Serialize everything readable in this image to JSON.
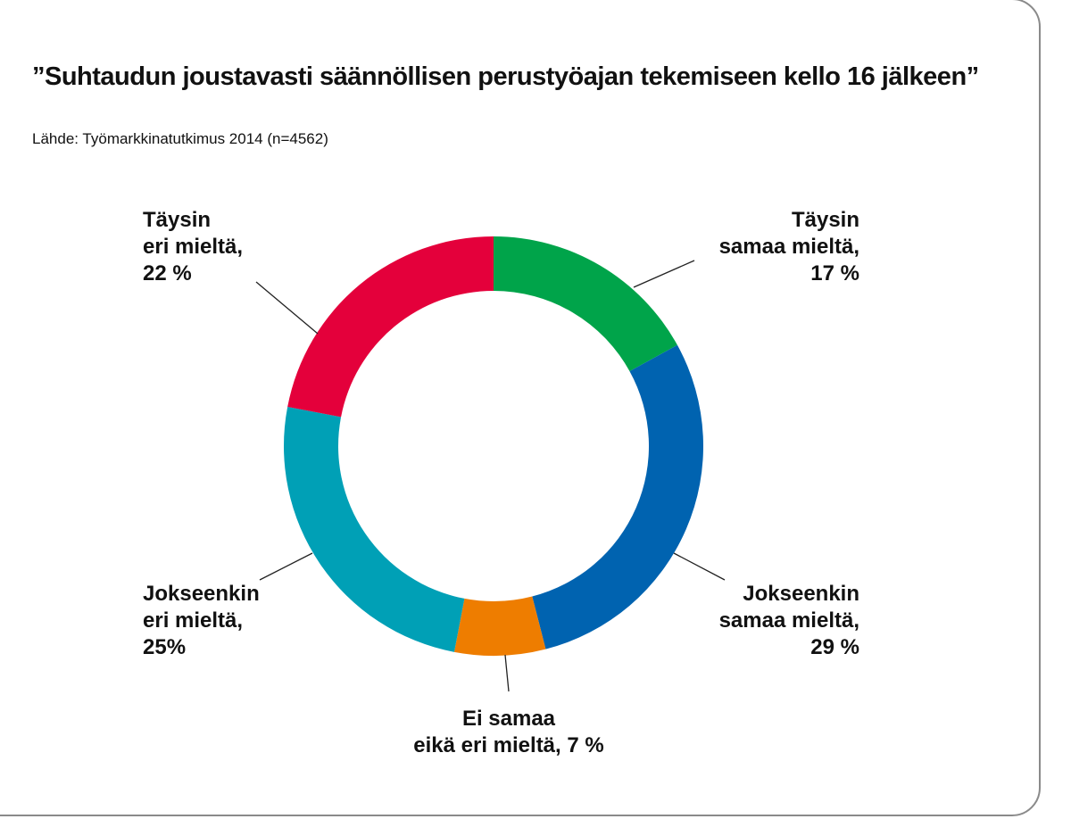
{
  "title": "”Suhtaudun joustavasti säännöllisen perustyöajan tekemiseen kello 16 jälkeen”",
  "subtitle": "Lähde: Työmarkkinatutkimus 2014 (n=4562)",
  "chart_data": {
    "type": "pie",
    "donut": true,
    "title": "”Suhtaudun joustavasti säännöllisen perustyöajan tekemiseen kello 16 jälkeen”",
    "source": "Lähde: Työmarkkinatutkimus 2014 (n=4562)",
    "slices": [
      {
        "name": "Täysin samaa mieltä",
        "value": 17,
        "color": "#00a44a",
        "label_lines": [
          "Täysin",
          "samaa mieltä,",
          "17 %"
        ]
      },
      {
        "name": "Jokseenkin samaa mieltä",
        "value": 29,
        "color": "#0063b0",
        "label_lines": [
          "Jokseenkin",
          "samaa mieltä,",
          "29 %"
        ]
      },
      {
        "name": "Ei samaa eikä eri mieltä",
        "value": 7,
        "color": "#ee7d00",
        "label_lines": [
          "Ei samaa",
          "eikä eri mieltä, 7 %"
        ]
      },
      {
        "name": "Jokseenkin eri mieltä",
        "value": 25,
        "color": "#00a0b6",
        "label_lines": [
          "Jokseenkin",
          "eri mieltä,",
          "25%"
        ]
      },
      {
        "name": "Täysin eri mieltä",
        "value": 22,
        "color": "#e4003b",
        "label_lines": [
          "Täysin",
          "eri mieltä,",
          "22 %"
        ]
      }
    ]
  }
}
